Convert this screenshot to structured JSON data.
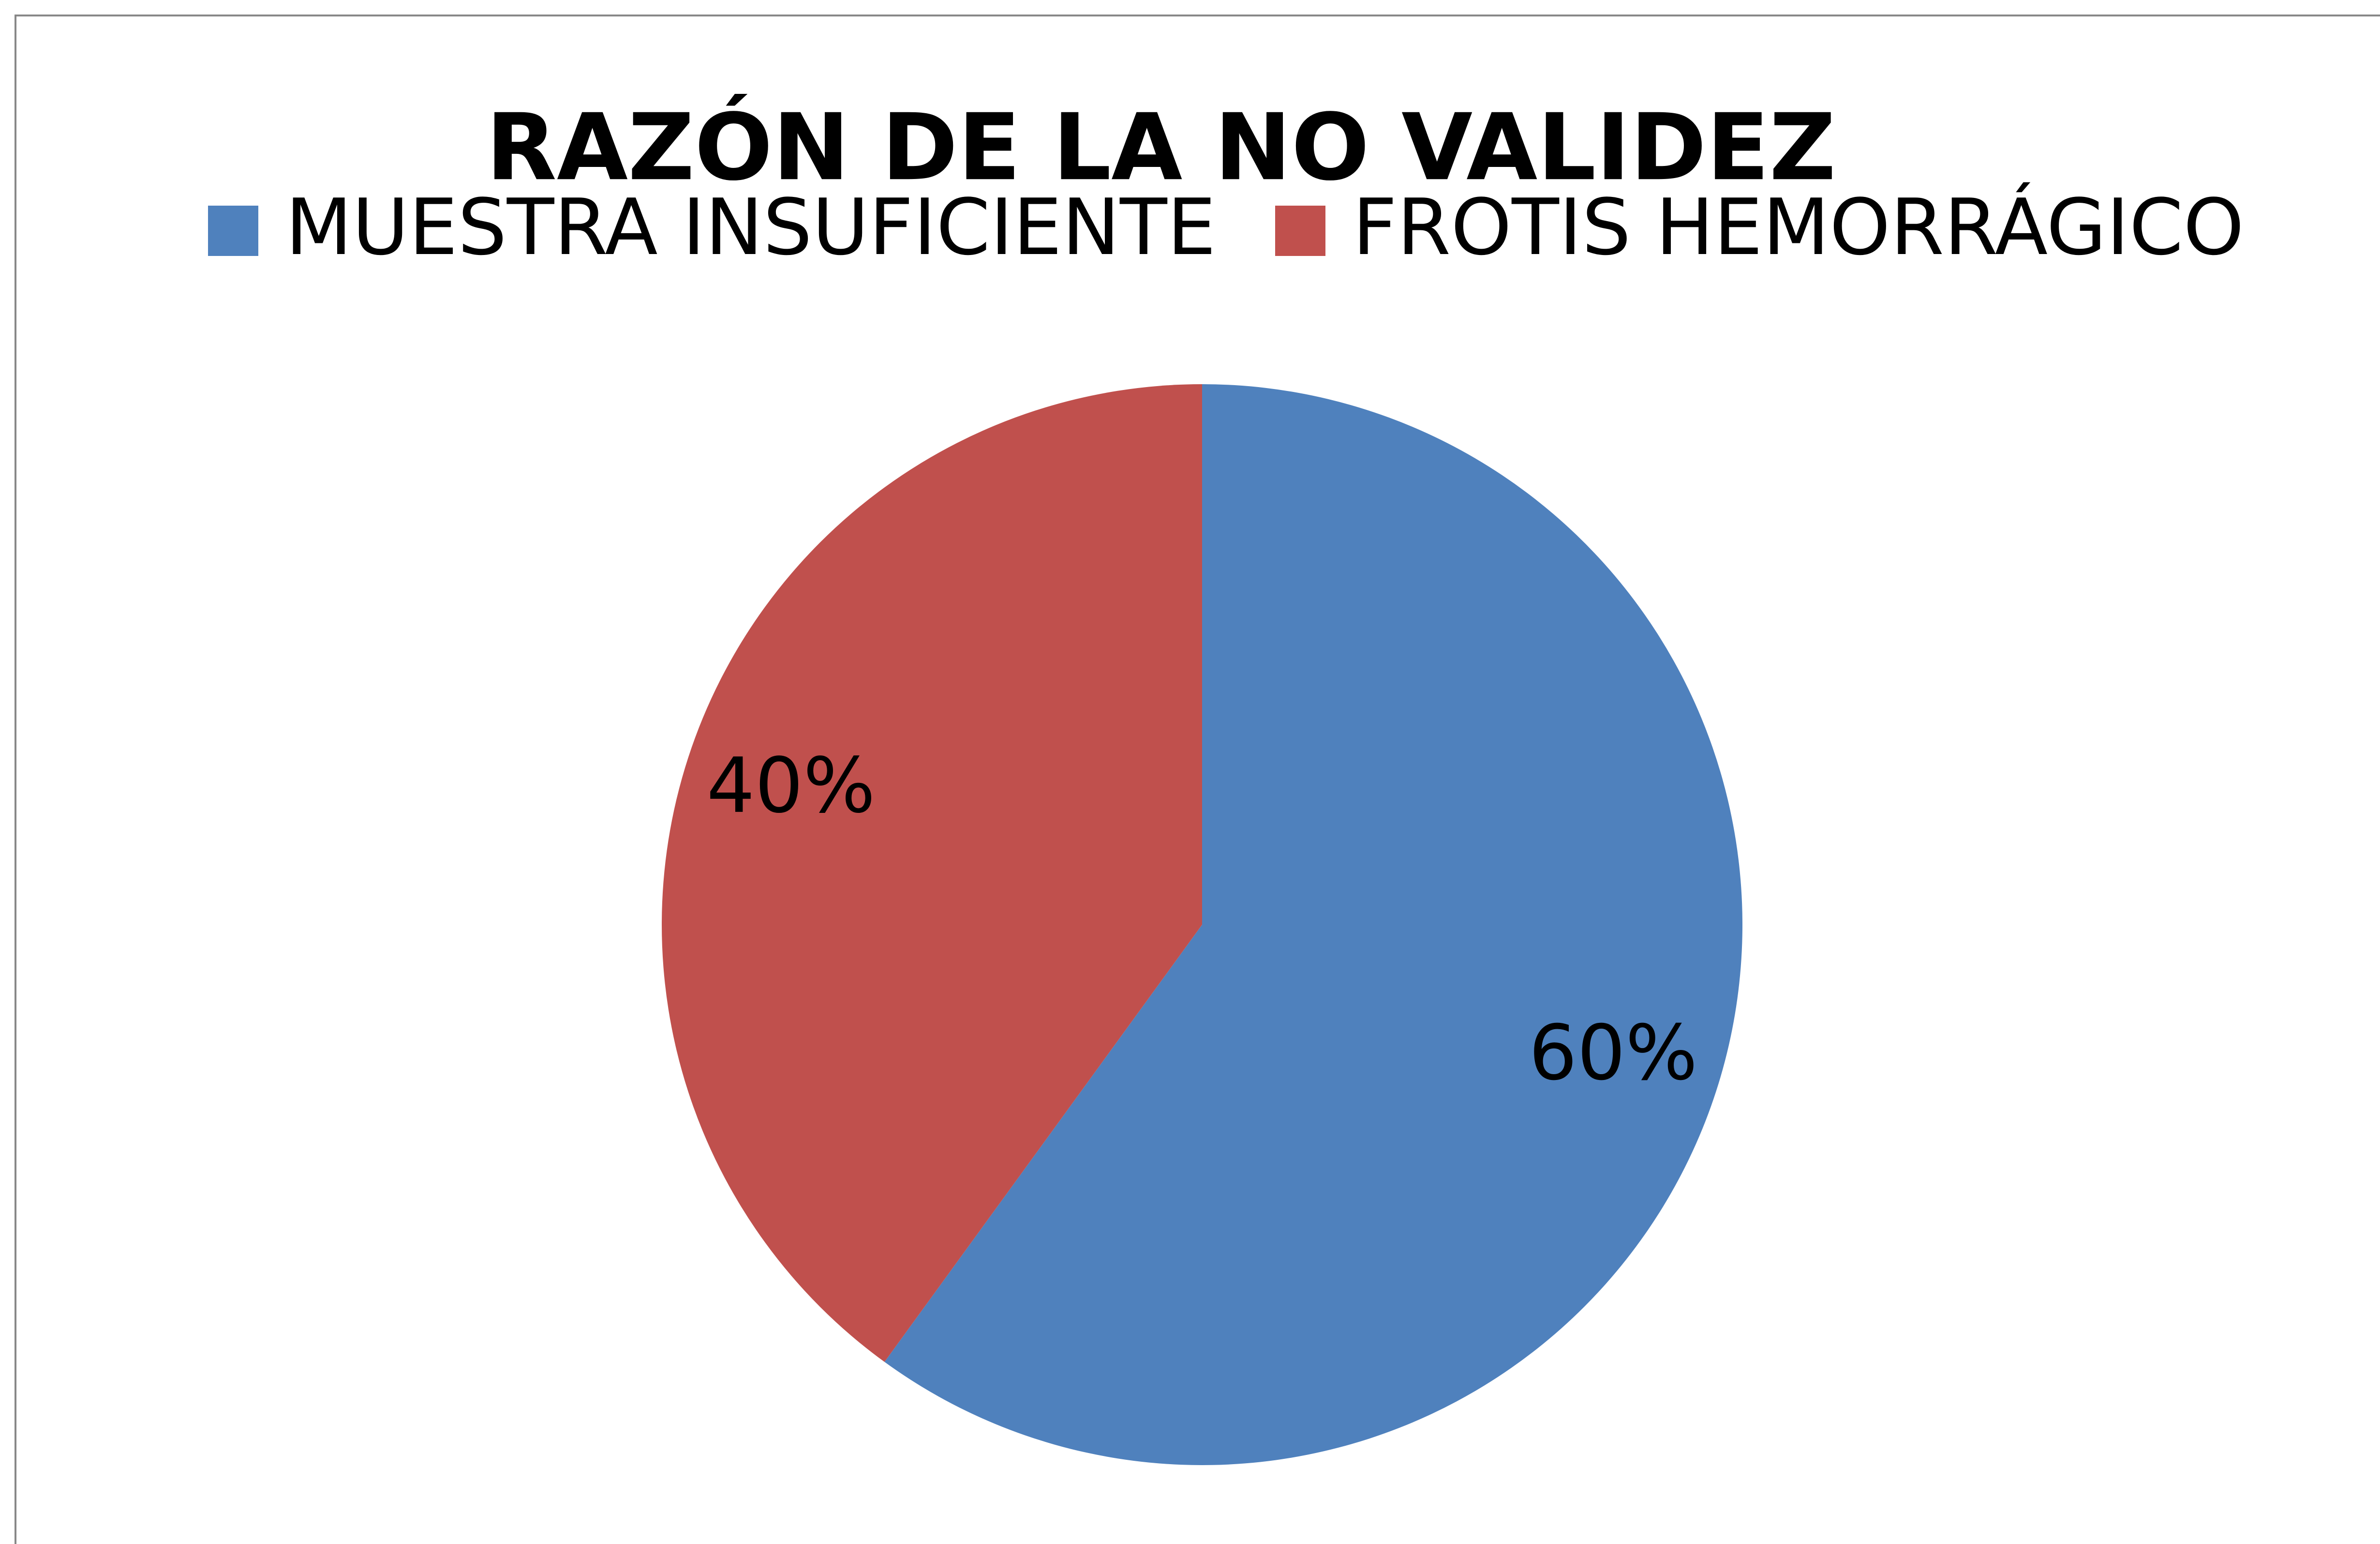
{
  "chart_data": {
    "type": "pie",
    "title": "RAZÓN DE LA NO VALIDEZ",
    "categories": [
      "MUESTRA INSUFICIENTE",
      "FROTIS HEMORRÁGICO"
    ],
    "values": [
      60,
      40
    ],
    "value_labels": [
      "60%",
      "40%"
    ],
    "colors": [
      "#4f81bd",
      "#c0504d"
    ],
    "legend": "top"
  }
}
